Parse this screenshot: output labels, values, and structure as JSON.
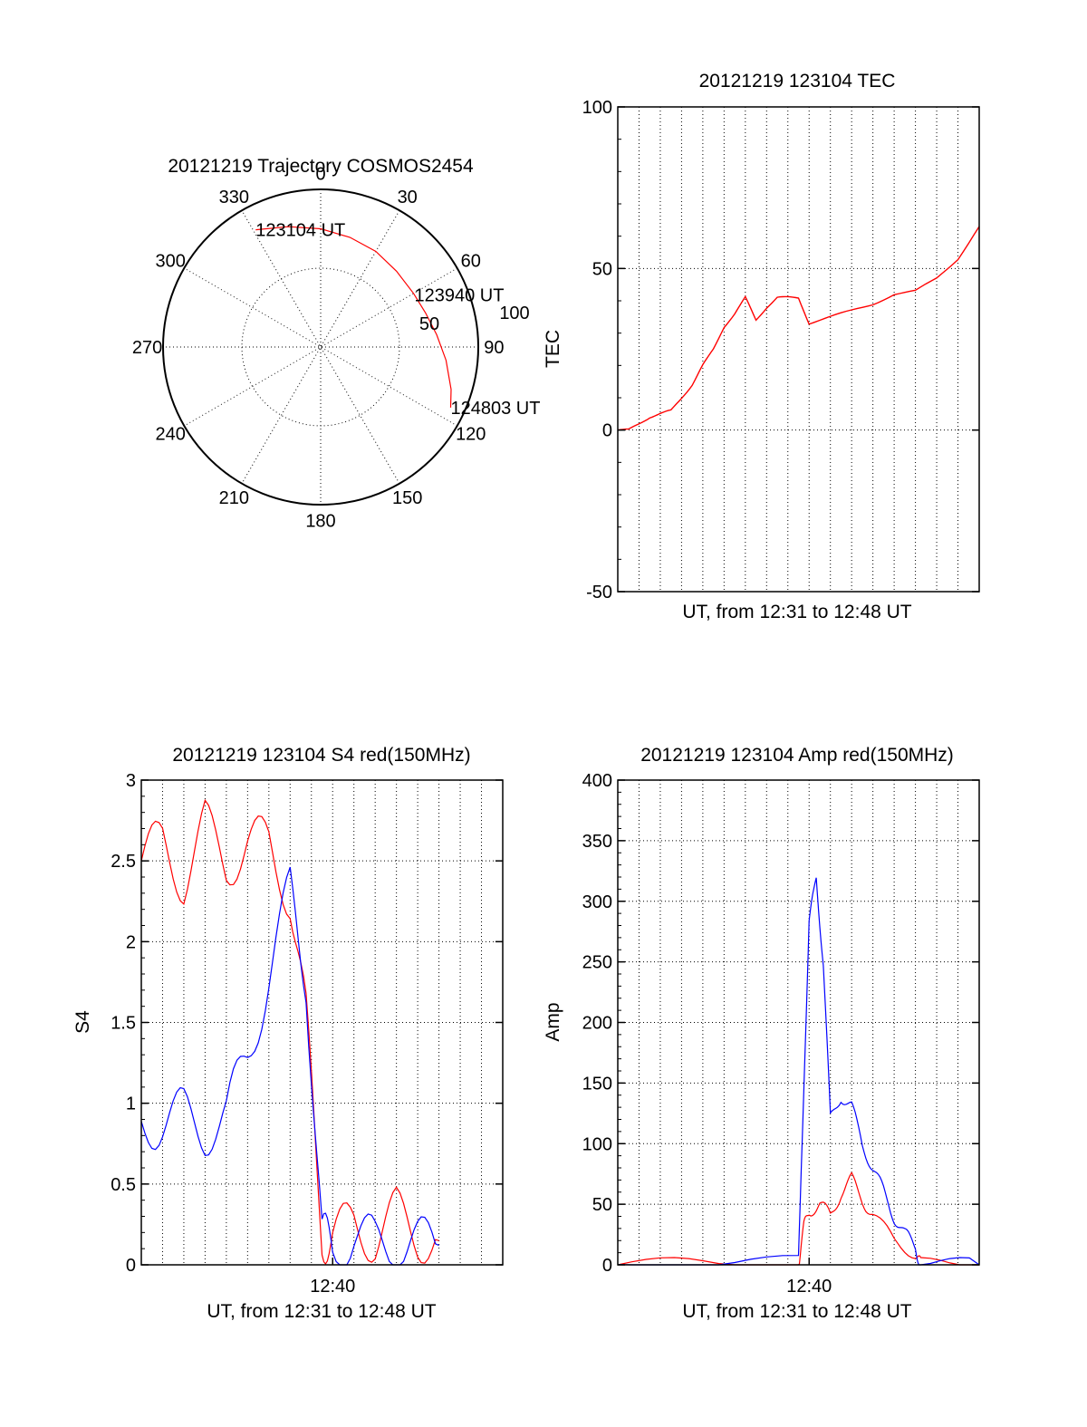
{
  "colors": {
    "primary_series": "#ff0000",
    "secondary_series": "#0000ff",
    "axis": "#000000",
    "grid": "#000000"
  },
  "chart_data": [
    {
      "id": "polar",
      "type": "scatter",
      "title": "20121219 Trajectory COSMOS2454",
      "angle_labels": [
        "0",
        "30",
        "60",
        "90",
        "120",
        "150",
        "180",
        "210",
        "240",
        "270",
        "300",
        "330"
      ],
      "radius_labels": [
        "50",
        "100"
      ],
      "radius_range": [
        0,
        100
      ],
      "grid": true,
      "series": [
        {
          "color": "#ff0000",
          "points": [
            [
              331,
              85
            ],
            [
              345,
              79
            ],
            [
              0,
              75
            ],
            [
              15,
              72
            ],
            [
              30,
              70
            ],
            [
              45,
              68
            ],
            [
              60,
              68
            ],
            [
              72,
              70
            ],
            [
              84,
              74
            ],
            [
              96,
              80
            ],
            [
              108,
              87
            ],
            [
              115,
              91
            ]
          ]
        }
      ],
      "annotations": [
        {
          "text": "123104 UT",
          "azimuth": 331,
          "radius": 85
        },
        {
          "text": "123940 UT",
          "azimuth": 61,
          "radius": 68
        },
        {
          "text": "124803 UT",
          "azimuth": 115,
          "radius": 91
        }
      ]
    },
    {
      "id": "tec",
      "type": "line",
      "title": "20121219 123104 TEC",
      "xlabel": "UT, from 12:31 to 12:48 UT",
      "ylabel": "TEC",
      "xlim": [
        "12:31",
        "12:48"
      ],
      "ylim": [
        -50,
        100
      ],
      "yticks": [
        "100",
        "50",
        "0",
        "-50"
      ],
      "xticks": [],
      "grid": true,
      "series": [
        {
          "color": "#ff0000",
          "x": [
            "12:31:00",
            "12:31:30",
            "12:32:00",
            "12:32:30",
            "12:33:00",
            "12:33:30",
            "12:34:00",
            "12:34:30",
            "12:35:00",
            "12:35:30",
            "12:36:00",
            "12:36:30",
            "12:37:00",
            "12:37:30",
            "12:38:00",
            "12:38:30",
            "12:39:00",
            "12:39:30",
            "12:40:00",
            "12:41:00",
            "12:42:00",
            "12:43:00",
            "12:44:00",
            "12:45:00",
            "12:46:00",
            "12:47:00",
            "12:48:00"
          ],
          "y": [
            0,
            0,
            2,
            4,
            5,
            6,
            10,
            14,
            20,
            25,
            32,
            36,
            41,
            34,
            38,
            41,
            41,
            41,
            33,
            35,
            37,
            39,
            42,
            43,
            47,
            53,
            63
          ]
        }
      ]
    },
    {
      "id": "s4",
      "type": "line",
      "title": "20121219 123104 S4 red(150MHz)",
      "xlabel": "UT, from 12:31 to 12:48 UT",
      "ylabel": "S4",
      "xlim": [
        "12:31",
        "12:48"
      ],
      "ylim": [
        0,
        3
      ],
      "yticks": [
        "3",
        "2.5",
        "2",
        "1.5",
        "1",
        "0.5",
        "0"
      ],
      "xticks": [
        "12:40"
      ],
      "grid": true,
      "series": [
        {
          "color": "#ff0000",
          "x": [
            "12:31:00",
            "12:32:00",
            "12:33:00",
            "12:34:00",
            "12:35:00",
            "12:36:00",
            "12:37:00",
            "12:38:00",
            "12:38:45",
            "12:39:30",
            "12:40:00",
            "12:41:00",
            "12:42:00",
            "12:43:00",
            "12:44:00",
            "12:45:00"
          ],
          "y": [
            2.5,
            2.6,
            2.4,
            2.7,
            2.5,
            2.6,
            2.6,
            2.3,
            1.5,
            0.2,
            0.15,
            0.25,
            0.18,
            0.3,
            0.2,
            0.15
          ]
        },
        {
          "color": "#0000ff",
          "x": [
            "12:31:00",
            "12:32:00",
            "12:33:00",
            "12:34:00",
            "12:35:00",
            "12:36:00",
            "12:37:00",
            "12:38:00",
            "12:38:45",
            "12:39:30",
            "12:40:00",
            "12:41:00",
            "12:42:00",
            "12:43:00",
            "12:44:00",
            "12:45:00"
          ],
          "y": [
            0.88,
            0.9,
            0.92,
            0.85,
            0.9,
            1.3,
            1.8,
            2.3,
            1.8,
            0.15,
            0.12,
            0.18,
            0.12,
            0.15,
            0.12,
            0.12
          ]
        }
      ]
    },
    {
      "id": "amp",
      "type": "line",
      "title": "20121219 123104 Amp red(150MHz)",
      "xlabel": "UT, from 12:31 to 12:48 UT",
      "ylabel": "Amp",
      "xlim": [
        "12:31",
        "12:48"
      ],
      "ylim": [
        0,
        400
      ],
      "yticks": [
        "400",
        "350",
        "300",
        "250",
        "200",
        "150",
        "100",
        "50",
        "0"
      ],
      "xticks": [
        "12:40"
      ],
      "grid": true,
      "series": [
        {
          "color": "#ff0000",
          "x": [
            "12:31:00",
            "12:35:00",
            "12:39:30",
            "12:39:45",
            "12:40:00",
            "12:40:30",
            "12:41:00",
            "12:41:30",
            "12:42:00",
            "12:42:30",
            "12:43:00",
            "12:44:00",
            "12:45:00",
            "12:45:15",
            "12:48:00"
          ],
          "y": [
            0,
            0,
            0,
            30,
            45,
            50,
            40,
            60,
            70,
            55,
            40,
            20,
            10,
            0,
            0
          ]
        },
        {
          "color": "#0000ff",
          "x": [
            "12:31:00",
            "12:35:00",
            "12:39:30",
            "12:39:45",
            "12:40:00",
            "12:40:20",
            "12:40:40",
            "12:41:00",
            "12:41:30",
            "12:42:00",
            "12:42:30",
            "12:43:00",
            "12:43:30",
            "12:44:00",
            "12:44:30",
            "12:45:00",
            "12:45:15",
            "12:48:00"
          ],
          "y": [
            0,
            0,
            2,
            150,
            280,
            320,
            250,
            120,
            140,
            130,
            100,
            80,
            60,
            40,
            25,
            15,
            0,
            0
          ]
        }
      ]
    }
  ]
}
